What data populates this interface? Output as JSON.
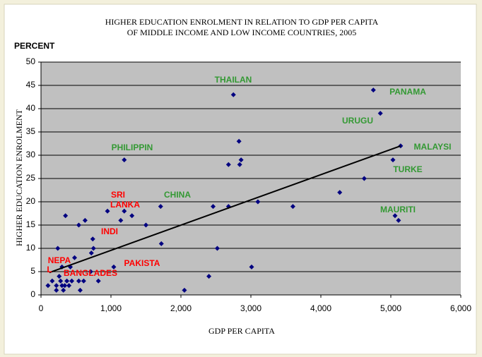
{
  "chart_data": {
    "type": "scatter",
    "title": [
      "HIGHER EDUCATION ENROLMENT IN RELATION TO GDP PER CAPITA",
      "OF MIDDLE INCOME AND LOW INCOME COUNTRIES, 2005"
    ],
    "y_unit": "PERCENT",
    "xlabel": "GDP PER CAPITA",
    "ylabel": "HIGHER EDUCATION ENROLMENT",
    "color": "#000080",
    "grid": true,
    "xlim": [
      0,
      6000
    ],
    "ylim": [
      0,
      50
    ],
    "xticks": [
      0,
      {
        "value": 1000,
        "label": "1,000"
      },
      {
        "value": 2000,
        "label": "2,000"
      },
      {
        "value": 3000,
        "label": "3,000"
      },
      {
        "value": 4000,
        "label": "4,000"
      },
      {
        "value": 5000,
        "label": "5,000"
      },
      {
        "value": 6000,
        "label": "6,000"
      }
    ],
    "yticks": [
      0,
      5,
      10,
      15,
      20,
      25,
      30,
      35,
      40,
      45,
      50
    ],
    "x": [
      4750,
      4850,
      2750,
      2830,
      2860,
      2840,
      2680,
      1190,
      5140,
      5030,
      4270,
      4620,
      5060,
      5110,
      3600,
      3100,
      2680,
      2460,
      2520,
      3010,
      2400,
      2050,
      1710,
      1720,
      1500,
      1300,
      1190,
      1140,
      950,
      1040,
      820,
      740,
      750,
      720,
      710,
      630,
      540,
      350,
      240,
      480,
      420,
      300,
      610,
      540,
      560,
      100,
      160,
      220,
      220,
      280,
      320,
      340,
      370,
      400,
      440,
      300,
      260
    ],
    "values": [
      44,
      39,
      43,
      33,
      29,
      28,
      28,
      29,
      32,
      29,
      22,
      25,
      17,
      16,
      19,
      20,
      19,
      19,
      10,
      6,
      4,
      1,
      19,
      11,
      15,
      17,
      18,
      16,
      18,
      6,
      3,
      12,
      10,
      9,
      5,
      16,
      15,
      17,
      10,
      8,
      6,
      6,
      3,
      3,
      1,
      2,
      3,
      2,
      1,
      3,
      1,
      2,
      3,
      2,
      3,
      2,
      4
    ],
    "trendline": {
      "color": "#000000",
      "x": [
        120,
        5140
      ],
      "values": [
        4.8,
        32
      ]
    },
    "annotations": [
      {
        "text": "THAILAN",
        "color": "#339933"
      },
      {
        "text": "PANAMA",
        "color": "#339933"
      },
      {
        "text": "URUGU",
        "color": "#339933"
      },
      {
        "text": "PHILIPPIN",
        "color": "#339933"
      },
      {
        "text": "MALAYSI",
        "color": "#339933"
      },
      {
        "text": "TURKE",
        "color": "#339933"
      },
      {
        "text": "CHINA",
        "color": "#339933"
      },
      {
        "text": "MAURITI",
        "color": "#339933"
      },
      {
        "text": "SRI",
        "color": "#ff0000"
      },
      {
        "text": "LANKA",
        "color": "#ff0000"
      },
      {
        "text": "INDI",
        "color": "#ff0000"
      },
      {
        "text": "NEPA",
        "color": "#ff0000"
      },
      {
        "text": "L",
        "color": "#ff0000"
      },
      {
        "text": "BANGLADES",
        "color": "#ff0000"
      },
      {
        "text": "PAKISTA",
        "color": "#ff0000"
      }
    ]
  }
}
